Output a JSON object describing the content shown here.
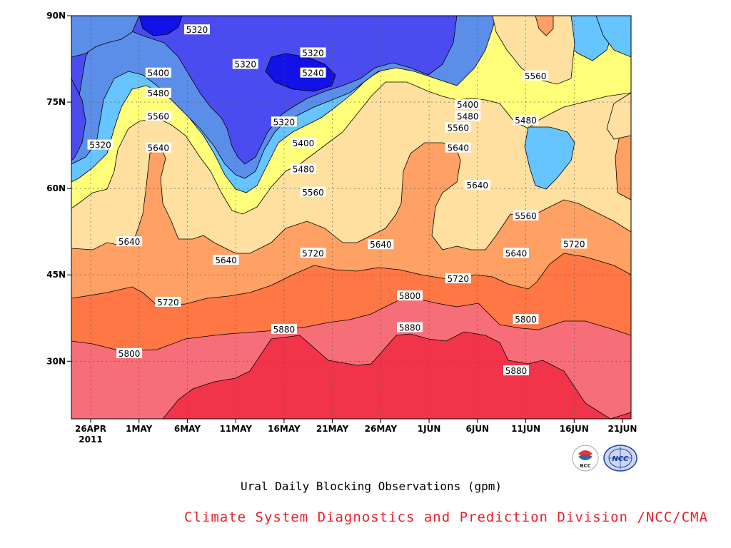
{
  "chart_data": {
    "type": "contour",
    "title": "Ural Daily Blocking Observations (gpm)",
    "xlabel": "",
    "ylabel": "",
    "x_ticks": [
      "26APR",
      "1MAY",
      "6MAY",
      "11MAY",
      "16MAY",
      "21MAY",
      "26MAY",
      "1JUN",
      "6JUN",
      "11JUN",
      "16JUN",
      "21JUN"
    ],
    "x_year": "2011",
    "y_ticks": [
      "30N",
      "45N",
      "60N",
      "75N",
      "90N"
    ],
    "ylim": [
      20,
      90
    ],
    "grid": true,
    "levels": [
      5240,
      5320,
      5400,
      5480,
      5560,
      5640,
      5720,
      5800,
      5880
    ],
    "level_colors": [
      "#1212e6",
      "#4b4cf0",
      "#5b8ee8",
      "#66c4ff",
      "#ffff7a",
      "#ffe0a0",
      "#ffa064",
      "#ff7744",
      "#f66e78",
      "#f2344a"
    ],
    "contour_labels": [
      {
        "value": "5320",
        "date": "7MAY",
        "lat": 87.5
      },
      {
        "value": "5320",
        "date": "19MAY",
        "lat": 83.5
      },
      {
        "value": "5320",
        "date": "12MAY",
        "lat": 81.5
      },
      {
        "value": "5240",
        "date": "19MAY",
        "lat": 80.0
      },
      {
        "value": "5400",
        "date": "3MAY",
        "lat": 80.0
      },
      {
        "value": "5480",
        "date": "3MAY",
        "lat": 76.5
      },
      {
        "value": "5320",
        "date": "27APR",
        "lat": 67.5
      },
      {
        "value": "5560",
        "date": "3MAY",
        "lat": 72.5
      },
      {
        "value": "5640",
        "date": "3MAY",
        "lat": 67.0
      },
      {
        "value": "5320",
        "date": "16MAY",
        "lat": 71.5
      },
      {
        "value": "5400",
        "date": "18MAY",
        "lat": 67.8
      },
      {
        "value": "5480",
        "date": "18MAY",
        "lat": 63.3
      },
      {
        "value": "5560",
        "date": "19MAY",
        "lat": 59.3
      },
      {
        "value": "5640",
        "date": "30APR",
        "lat": 50.7
      },
      {
        "value": "5640",
        "date": "10MAY",
        "lat": 47.5
      },
      {
        "value": "5720",
        "date": "19MAY",
        "lat": 48.7
      },
      {
        "value": "5640",
        "date": "26MAY",
        "lat": 50.2
      },
      {
        "value": "5720",
        "date": "4MAY",
        "lat": 40.2
      },
      {
        "value": "5800",
        "date": "30APR",
        "lat": 31.3
      },
      {
        "value": "5880",
        "date": "16MAY",
        "lat": 35.5
      },
      {
        "value": "5800",
        "date": "29MAY",
        "lat": 41.3
      },
      {
        "value": "5880",
        "date": "29MAY",
        "lat": 35.8
      },
      {
        "value": "5720",
        "date": "3JUN",
        "lat": 44.3
      },
      {
        "value": "5400",
        "date": "4JUN",
        "lat": 74.5
      },
      {
        "value": "5480",
        "date": "4JUN",
        "lat": 72.5
      },
      {
        "value": "5560",
        "date": "3JUN",
        "lat": 70.5
      },
      {
        "value": "5640",
        "date": "3JUN",
        "lat": 67.0
      },
      {
        "value": "5640",
        "date": "5JUN",
        "lat": 60.5
      },
      {
        "value": "5560",
        "date": "11JUN",
        "lat": 79.5
      },
      {
        "value": "5480",
        "date": "10JUN",
        "lat": 71.8
      },
      {
        "value": "5560",
        "date": "10JUN",
        "lat": 55.2
      },
      {
        "value": "5640",
        "date": "9JUN",
        "lat": 48.7
      },
      {
        "value": "5720",
        "date": "15JUN",
        "lat": 50.3
      },
      {
        "value": "5800",
        "date": "10JUN",
        "lat": 37.2
      },
      {
        "value": "5880",
        "date": "9JUN",
        "lat": 28.3
      }
    ]
  },
  "footer": {
    "credit": "Climate System Diagnostics and Prediction Division /NCC/CMA",
    "logo_bcc": "BCC",
    "logo_ncc": "NCC"
  }
}
